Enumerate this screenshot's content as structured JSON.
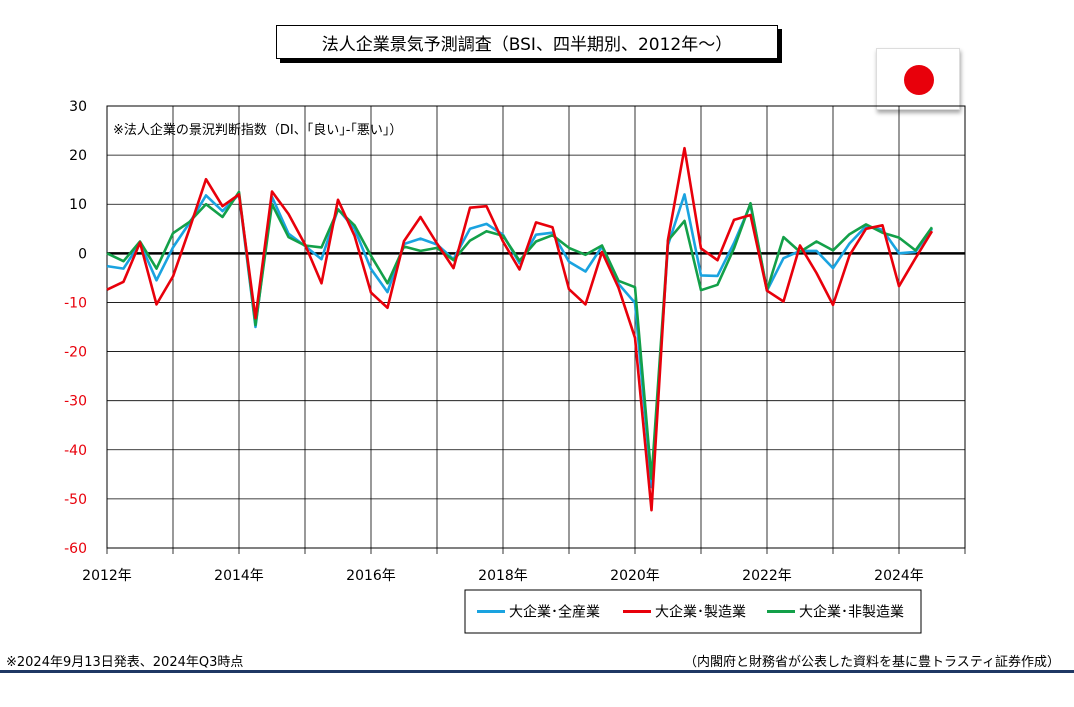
{
  "chart_data": {
    "type": "line",
    "title": "法人企業景気予測調査（BSI、四半期別、2012年～）",
    "annotation": "※法人企業の景況判断指数（DI、｢良い｣-｢悪い｣）",
    "ylim": [
      -60,
      30
    ],
    "yticks": [
      30,
      20,
      10,
      0,
      -10,
      -20,
      -30,
      -40,
      -50,
      -60
    ],
    "xlabels": [
      "2012年",
      "2014年",
      "2016年",
      "2018年",
      "2020年",
      "2022年",
      "2024年"
    ],
    "x_start_year": 2012,
    "x_end_year": 2025,
    "quarters": [
      "2012Q1",
      "2012Q2",
      "2012Q3",
      "2012Q4",
      "2013Q1",
      "2013Q2",
      "2013Q3",
      "2013Q4",
      "2014Q1",
      "2014Q2",
      "2014Q3",
      "2014Q4",
      "2015Q1",
      "2015Q2",
      "2015Q3",
      "2015Q4",
      "2016Q1",
      "2016Q2",
      "2016Q3",
      "2016Q4",
      "2017Q1",
      "2017Q2",
      "2017Q3",
      "2017Q4",
      "2018Q1",
      "2018Q2",
      "2018Q3",
      "2018Q4",
      "2019Q1",
      "2019Q2",
      "2019Q3",
      "2019Q4",
      "2020Q1",
      "2020Q2",
      "2020Q3",
      "2020Q4",
      "2021Q1",
      "2021Q2",
      "2021Q3",
      "2021Q4",
      "2022Q1",
      "2022Q2",
      "2022Q3",
      "2022Q4",
      "2023Q1",
      "2023Q2",
      "2023Q3",
      "2023Q4",
      "2024Q1",
      "2024Q2",
      "2024Q3"
    ],
    "series": [
      {
        "name": "大企業･全産業",
        "color": "#1aa3e0",
        "values": [
          -2.6,
          -3.1,
          2.1,
          -5.5,
          1.2,
          6.2,
          11.8,
          8.6,
          12.0,
          -15.0,
          11.5,
          4.0,
          1.5,
          -1.2,
          9.0,
          5.0,
          -3.2,
          -7.9,
          1.9,
          3.0,
          1.8,
          -1.2,
          5.0,
          6.0,
          3.8,
          -2.0,
          3.8,
          4.2,
          -1.7,
          -3.7,
          1.4,
          -6.2,
          -10.1,
          -47.6,
          1.7,
          12.0,
          -4.5,
          -4.6,
          2.1,
          9.9,
          -7.6,
          -1.0,
          0.5,
          0.5,
          -3.0,
          2.0,
          5.5,
          4.8,
          0.0,
          0.3,
          5.0
        ]
      },
      {
        "name": "大企業･製造業",
        "color": "#e8000b",
        "values": [
          -7.4,
          -5.8,
          2.2,
          -10.4,
          -4.7,
          5.0,
          15.1,
          9.6,
          12.0,
          -13.2,
          12.6,
          8.0,
          1.8,
          -6.1,
          10.9,
          3.6,
          -8.0,
          -11.1,
          2.5,
          7.4,
          2.0,
          -3.0,
          9.3,
          9.6,
          2.4,
          -3.3,
          6.3,
          5.3,
          -7.3,
          -10.4,
          0.3,
          -7.0,
          -17.2,
          -52.3,
          2.8,
          21.4,
          1.0,
          -1.4,
          6.8,
          7.8,
          -7.6,
          -9.8,
          1.6,
          -4.0,
          -10.5,
          -0.4,
          5.0,
          5.7,
          -6.7,
          -1.0,
          4.5
        ]
      },
      {
        "name": "大企業･非製造業",
        "color": "#13a049",
        "values": [
          0.0,
          -1.6,
          2.4,
          -3.1,
          4.1,
          6.4,
          10.0,
          7.4,
          12.5,
          -14.6,
          10.0,
          3.3,
          1.6,
          1.2,
          8.9,
          5.7,
          -0.5,
          -6.1,
          1.4,
          0.5,
          1.1,
          -1.4,
          2.6,
          4.5,
          3.6,
          -1.5,
          2.4,
          3.7,
          1.1,
          -0.3,
          1.6,
          -5.6,
          -6.9,
          -45.9,
          2.6,
          6.6,
          -7.5,
          -6.4,
          1.0,
          10.2,
          -7.5,
          3.3,
          0.3,
          2.4,
          0.6,
          3.9,
          5.9,
          4.2,
          3.2,
          0.6,
          5.3
        ]
      }
    ],
    "grid": true,
    "legend": "bottom-center"
  },
  "footnote_left": "※2024年9月13日発表、2024年Q3時点",
  "footnote_right": "（内閣府と財務省が公表した資料を基に豊トラスティ証券作成）",
  "flag_icon": "japan-flag-icon"
}
